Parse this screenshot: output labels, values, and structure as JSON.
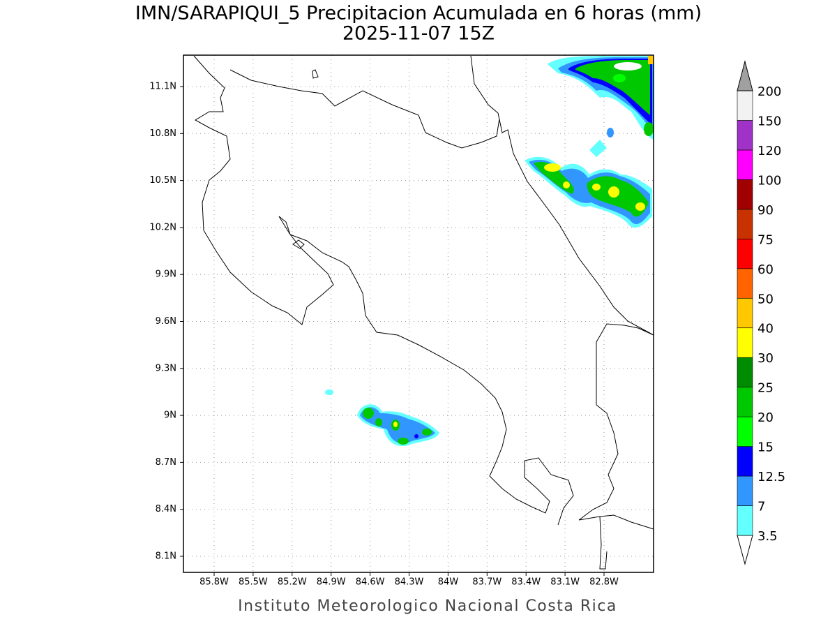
{
  "map": {
    "title": "IMN/SARAPIQUI_5 Precipitacion Acumulada en 6 horas (mm)",
    "subtitle": "2025-11-07 15Z",
    "lon_ticks": [
      "85.8W",
      "85.5W",
      "85.2W",
      "84.9W",
      "84.6W",
      "84.3W",
      "84W",
      "83.7W",
      "83.4W",
      "83.1W",
      "82.8W"
    ],
    "lat_ticks": [
      "11.1N",
      "10.8N",
      "10.5N",
      "10.2N",
      "9.9N",
      "9.6N",
      "9.3N",
      "9N",
      "8.7N",
      "8.4N",
      "8.1N"
    ],
    "footer": "Instituto Meteorologico Nacional Costa Rica",
    "colorbar": {
      "levels": [
        3.5,
        7,
        12.5,
        15,
        20,
        25,
        30,
        40,
        50,
        60,
        75,
        90,
        100,
        120,
        150,
        200
      ],
      "colors": [
        "#ffffff",
        "#64ffff",
        "#3296ff",
        "#0000ff",
        "#00ff00",
        "#00c800",
        "#008c00",
        "#ffff00",
        "#ffc800",
        "#ff6400",
        "#ff0000",
        "#c83200",
        "#a00000",
        "#ff00ff",
        "#a032c8",
        "#f2f2f2",
        "#a0a0a0"
      ]
    }
  }
}
